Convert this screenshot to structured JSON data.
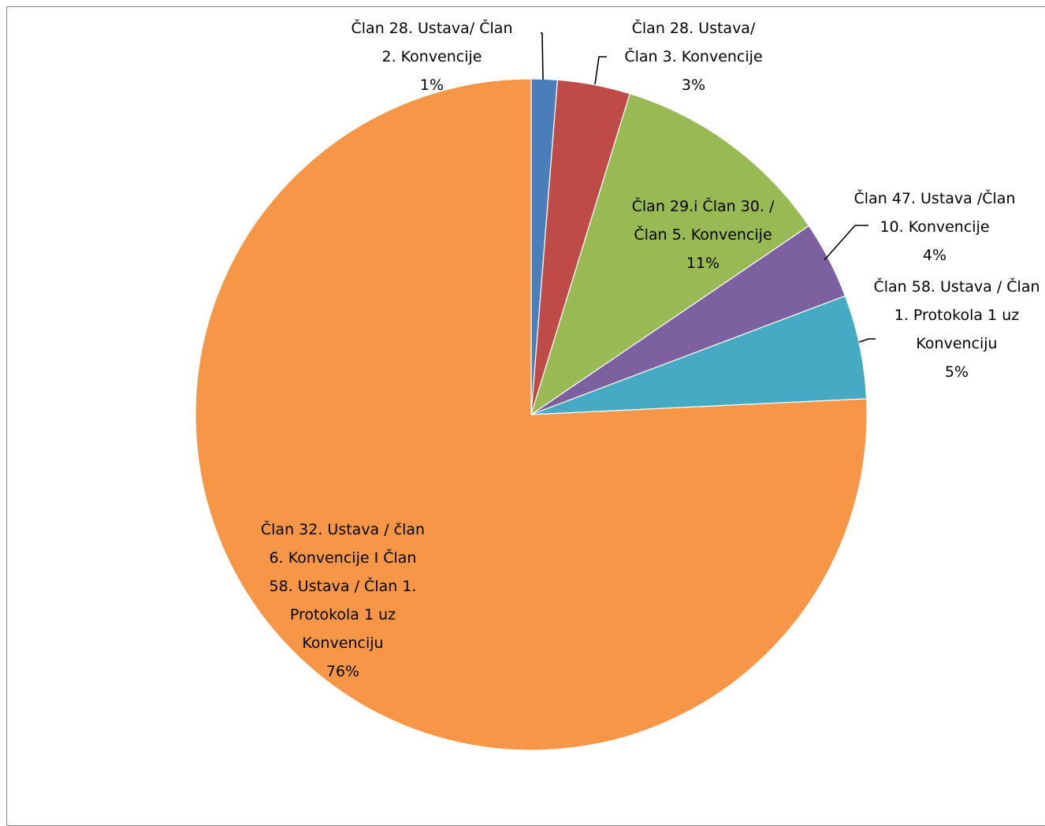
{
  "chart_data": {
    "type": "pie",
    "title": "",
    "start_angle_deg": 0,
    "direction": "clockwise",
    "slices": [
      {
        "lines": [
          "Član 28. Ustava/ Član",
          "2. Konvencije"
        ],
        "pct_label": "1%",
        "value": 1.25,
        "color": "#4a7ebb"
      },
      {
        "lines": [
          "Član 28. Ustava/",
          "Član 3. Konvencije"
        ],
        "pct_label": "3%",
        "value": 3.5,
        "color": "#be4b48"
      },
      {
        "lines": [
          "Član 29.i Član 30. /",
          "Član 5. Konvencije"
        ],
        "pct_label": "11%",
        "value": 10.75,
        "color": "#98b954"
      },
      {
        "lines": [
          "Član 47. Ustava /Član",
          "10. Konvencije"
        ],
        "pct_label": "4%",
        "value": 3.75,
        "color": "#7d60a0"
      },
      {
        "lines": [
          "Član 58. Ustava / Član",
          "1. Protokola 1 uz",
          "Konvenciju"
        ],
        "pct_label": "5%",
        "value": 5.0,
        "color": "#46aac5"
      },
      {
        "lines": [
          "Član 32. Ustava / član",
          "6. Konvencije I Član",
          "58. Ustava / Član 1.",
          "Protokola 1 uz",
          "Konvenciju"
        ],
        "pct_label": "76%",
        "value": 75.75,
        "color": "#f79646"
      }
    ]
  }
}
